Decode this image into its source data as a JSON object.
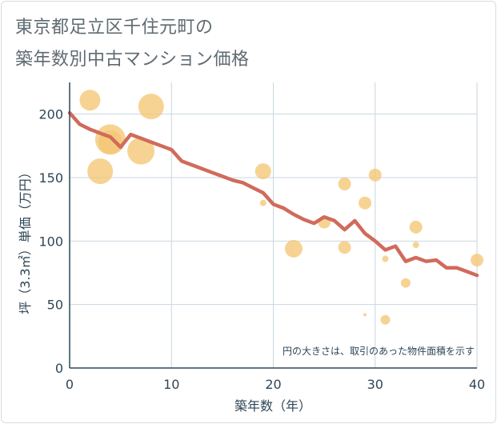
{
  "title_line1": "東京都足立区千住元町の",
  "title_line2": "築年数別中古マンション価格",
  "chart_data": {
    "type": "scatter",
    "xlabel": "築年数（年）",
    "ylabel": "坪（3.3㎡）単価（万円）",
    "xlim": [
      0,
      40
    ],
    "ylim": [
      0,
      225
    ],
    "xticks": [
      "0",
      "10",
      "20",
      "30",
      "40"
    ],
    "yticks": [
      "0",
      "50",
      "100",
      "150",
      "200"
    ],
    "grid": true,
    "note": "円の大きさは、取引のあった物件面積を示す",
    "colors": {
      "bubble": "#f5c675",
      "line": "#d06b5c",
      "grid": "#c9d6e0",
      "axis": "#2f4656"
    },
    "bubbles": [
      {
        "x": 2,
        "y": 211,
        "size": 12
      },
      {
        "x": 3,
        "y": 155,
        "size": 15
      },
      {
        "x": 4,
        "y": 180,
        "size": 18
      },
      {
        "x": 4,
        "y": 178,
        "size": 14
      },
      {
        "x": 7,
        "y": 171,
        "size": 16
      },
      {
        "x": 8,
        "y": 206,
        "size": 15
      },
      {
        "x": 19,
        "y": 155,
        "size": 9
      },
      {
        "x": 19,
        "y": 130,
        "size": 3
      },
      {
        "x": 22,
        "y": 94,
        "size": 10
      },
      {
        "x": 25,
        "y": 115,
        "size": 7
      },
      {
        "x": 27,
        "y": 145,
        "size": 7
      },
      {
        "x": 27,
        "y": 95,
        "size": 7
      },
      {
        "x": 29,
        "y": 130,
        "size": 7
      },
      {
        "x": 29,
        "y": 42,
        "size": 1
      },
      {
        "x": 30,
        "y": 152,
        "size": 7
      },
      {
        "x": 31,
        "y": 86,
        "size": 3
      },
      {
        "x": 31,
        "y": 38,
        "size": 5
      },
      {
        "x": 33,
        "y": 67,
        "size": 5
      },
      {
        "x": 34,
        "y": 111,
        "size": 7
      },
      {
        "x": 34,
        "y": 97,
        "size": 3
      },
      {
        "x": 40,
        "y": 85,
        "size": 7
      }
    ],
    "trend": {
      "x": [
        0,
        1,
        2,
        3,
        4,
        5,
        6,
        7,
        8,
        9,
        10,
        11,
        12,
        13,
        14,
        15,
        16,
        17,
        18,
        19,
        20,
        21,
        22,
        23,
        24,
        25,
        26,
        27,
        28,
        29,
        30,
        31,
        32,
        33,
        34,
        35,
        36,
        37,
        38,
        39,
        40
      ],
      "y": [
        201,
        192,
        188,
        185,
        182,
        174,
        184,
        181,
        178,
        175,
        172,
        163,
        160,
        157,
        154,
        151,
        148,
        146,
        142,
        138,
        129,
        126,
        121,
        117,
        114,
        119,
        116,
        109,
        116,
        106,
        100,
        93,
        96,
        84,
        87,
        84,
        85,
        79,
        79,
        76,
        73
      ]
    }
  }
}
